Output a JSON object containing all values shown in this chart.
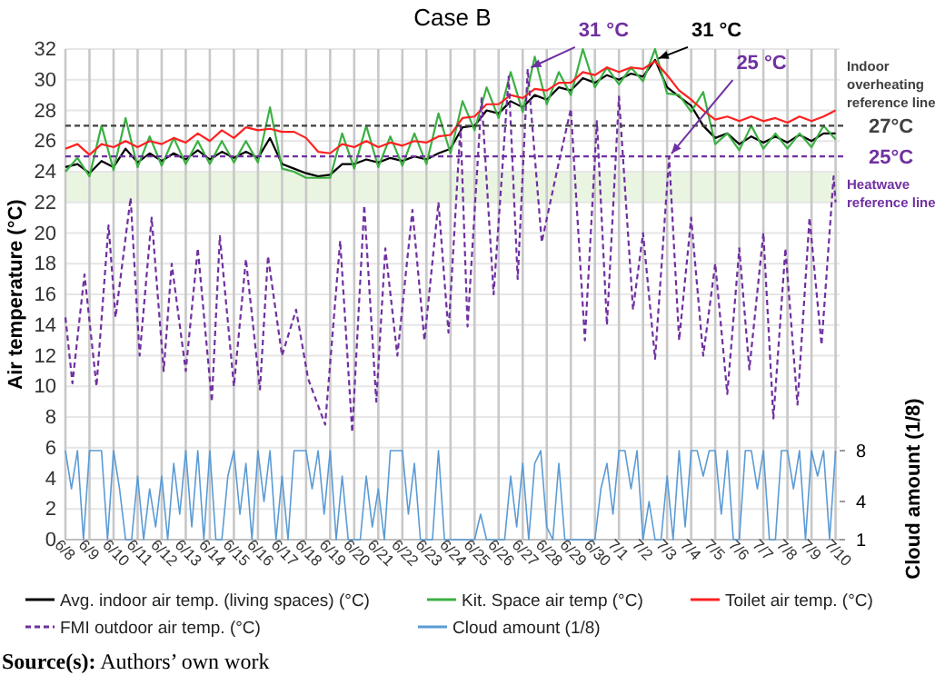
{
  "chart_data": {
    "type": "line",
    "title": "Case B",
    "ylabel": "Air temperature (°C)",
    "y2label": "Cloud amount (1/8)",
    "x": [
      "--06-08T00:00",
      "--06-08T12:00",
      "--06-09T00:00",
      "--06-09T12:00",
      "--06-10T00:00",
      "--06-10T12:00",
      "--06-11T00:00",
      "--06-11T12:00",
      "--06-12T00:00",
      "--06-12T12:00",
      "--06-13T00:00",
      "--06-13T12:00",
      "--06-14T00:00",
      "--06-14T12:00",
      "--06-15T00:00",
      "--06-15T12:00",
      "--06-16T00:00",
      "--06-16T12:00",
      "--06-17T00:00",
      "--06-17T12:00",
      "--06-18T00:00",
      "--06-18T12:00",
      "--06-19T00:00",
      "--06-19T12:00",
      "--06-20T00:00",
      "--06-20T12:00",
      "--06-21T00:00",
      "--06-21T12:00",
      "--06-22T00:00",
      "--06-22T12:00",
      "--06-23T00:00",
      "--06-23T12:00",
      "--06-24T00:00",
      "--06-24T12:00",
      "--06-25T00:00",
      "--06-25T12:00",
      "--06-26T00:00",
      "--06-26T12:00",
      "--06-27T00:00",
      "--06-27T12:00",
      "--06-28T00:00",
      "--06-28T12:00",
      "--06-29T00:00",
      "--06-29T12:00",
      "--06-30T00:00",
      "--06-30T12:00",
      "--07-01T00:00",
      "--07-01T12:00",
      "--07-02T00:00",
      "--07-02T12:00",
      "--07-03T00:00",
      "--07-03T12:00",
      "--07-04T00:00",
      "--07-04T12:00",
      "--07-05T00:00",
      "--07-05T12:00",
      "--07-06T00:00",
      "--07-06T12:00",
      "--07-07T00:00",
      "--07-07T12:00",
      "--07-08T00:00",
      "--07-08T12:00",
      "--07-09T00:00",
      "--07-09T12:00",
      "--07-10T00:00"
    ],
    "series": [
      {
        "name": "Avg. indoor air temp. (living spaces) (°C)",
        "color": "#000000",
        "values": [
          24.3,
          24.5,
          23.9,
          24.7,
          24.3,
          25.5,
          24.6,
          25.2,
          24.7,
          25.2,
          24.8,
          25.4,
          24.8,
          25.3,
          24.9,
          25.3,
          24.9,
          26.2,
          24.5,
          24.2,
          23.9,
          23.7,
          23.8,
          24.5,
          24.5,
          24.8,
          24.6,
          24.9,
          24.7,
          25.0,
          24.8,
          25.2,
          25.5,
          26.9,
          27.0,
          28.0,
          27.8,
          28.6,
          28.2,
          29.0,
          28.7,
          29.5,
          29.3,
          30.1,
          29.8,
          30.3,
          30.0,
          30.4,
          30.2,
          31.3,
          29.5,
          28.9,
          28.3,
          27.0,
          26.2,
          26.5,
          25.8,
          26.3,
          25.9,
          26.3,
          25.9,
          26.4,
          26.0,
          26.5,
          26.5
        ]
      },
      {
        "name": "Kit. Space air temp (°C)",
        "color": "#3cb043",
        "values": [
          24.0,
          24.9,
          23.7,
          27.0,
          24.1,
          27.5,
          24.3,
          26.3,
          24.4,
          26.2,
          24.5,
          26.0,
          24.5,
          26.0,
          24.6,
          26.0,
          24.6,
          28.2,
          24.2,
          24.0,
          23.6,
          23.6,
          23.6,
          26.5,
          24.2,
          27.0,
          24.3,
          26.3,
          24.4,
          26.5,
          24.5,
          27.8,
          25.2,
          28.6,
          26.7,
          29.5,
          27.5,
          30.5,
          27.9,
          31.5,
          28.4,
          30.5,
          29.0,
          32.0,
          29.5,
          30.8,
          29.7,
          30.8,
          29.9,
          32.0,
          29.1,
          29.0,
          27.9,
          29.2,
          25.8,
          26.5,
          25.4,
          27.0,
          25.5,
          26.5,
          25.5,
          26.5,
          25.6,
          27.0,
          26.1
        ]
      },
      {
        "name": "Toilet air temp. (°C)",
        "color": "#ff2020",
        "values": [
          25.5,
          25.8,
          25.1,
          25.8,
          25.6,
          26.0,
          25.6,
          26.0,
          25.8,
          26.2,
          25.9,
          26.5,
          26.0,
          26.7,
          26.2,
          26.9,
          26.7,
          26.8,
          26.6,
          26.6,
          26.2,
          25.3,
          25.2,
          25.8,
          25.6,
          26.0,
          25.6,
          25.9,
          25.7,
          26.0,
          25.9,
          26.3,
          26.4,
          27.5,
          27.6,
          28.4,
          28.4,
          29.0,
          28.8,
          29.4,
          29.3,
          29.8,
          29.8,
          30.5,
          30.3,
          30.8,
          30.5,
          30.8,
          30.7,
          31.2,
          30.3,
          29.3,
          28.7,
          28.0,
          27.4,
          27.6,
          27.3,
          27.6,
          27.3,
          27.5,
          27.2,
          27.6,
          27.3,
          27.6,
          28.0
        ]
      },
      {
        "name": "FMI outdoor air temp. (°C)",
        "color": "#7030a0",
        "line_style": "dashed",
        "x": [
          "--06-08T00:00",
          "--06-08T07:00",
          "--06-08T19:00",
          "--06-09T07:00",
          "--06-09T19:00",
          "--06-10T02:00",
          "--06-10T17:00",
          "--06-11T02:00",
          "--06-11T14:00",
          "--06-12T02:00",
          "--06-12T10:00",
          "--06-13T00:00",
          "--06-13T12:00",
          "--06-14T02:00",
          "--06-14T10:00",
          "--06-15T00:00",
          "--06-15T12:00",
          "--06-16T02:00",
          "--06-16T10:00",
          "--06-17T00:00",
          "--06-17T14:00",
          "--06-18T02:00",
          "--06-18T19:00",
          "--06-19T10:00",
          "--06-19T22:00",
          "--06-20T10:00",
          "--06-20T22:00",
          "--06-21T07:00",
          "--06-21T19:00",
          "--06-22T10:00",
          "--06-22T22:00",
          "--06-23T12:00",
          "--06-23T22:00",
          "--06-24T10:00",
          "--06-24T17:00",
          "--06-25T07:00",
          "--06-25T19:00",
          "--06-26T10:00",
          "--06-26T19:00",
          "--06-27T05:00",
          "--06-27T19:00",
          "--06-28T10:00",
          "--06-29T00:00",
          "--06-29T14:00",
          "--06-30T02:00",
          "--06-30T12:00",
          "--07-01T00:00",
          "--07-01T14:00",
          "--07-02T00:00",
          "--07-02T12:00",
          "--07-03T02:00",
          "--07-03T12:00",
          "--07-04T00:00",
          "--07-04T12:00",
          "--07-05T00:00",
          "--07-05T12:00",
          "--07-06T00:00",
          "--07-06T10:00",
          "--07-07T00:00",
          "--07-07T10:00",
          "--07-07T22:00",
          "--07-08T10:00",
          "--07-08T22:00",
          "--07-09T10:00",
          "--07-09T22:00",
          "--07-10T00:00"
        ],
        "values": [
          14.5,
          10.2,
          17.3,
          10,
          20.5,
          14.5,
          22.3,
          12,
          21,
          11,
          18,
          11,
          19,
          9,
          19.8,
          10,
          18.3,
          9.8,
          18.5,
          12,
          15,
          10.5,
          7.5,
          19.5,
          7,
          21.8,
          9,
          19,
          12,
          21.5,
          13,
          22,
          13.5,
          27,
          13.9,
          28.8,
          16,
          30.2,
          17,
          30.7,
          19.4,
          24,
          28.1,
          13,
          27.3,
          14,
          28.9,
          15,
          20,
          11.8,
          25,
          13,
          21,
          12,
          18,
          9.5,
          19,
          11.1,
          20,
          7.9,
          19,
          8.8,
          21,
          12.7,
          23.7,
          22
        ]
      },
      {
        "name": "Cloud amount (1/8)",
        "color": "#5b9bd5",
        "axis": "y2",
        "x": [
          "--06-08T00:00",
          "--06-08T06:00",
          "--06-08T12:00",
          "--06-08T18:00",
          "--06-09T00:00",
          "--06-09T06:00",
          "--06-09T12:00",
          "--06-09T18:00",
          "--06-10T00:00",
          "--06-10T06:00",
          "--06-10T12:00",
          "--06-10T18:00",
          "--06-11T00:00",
          "--06-11T06:00",
          "--06-11T12:00",
          "--06-11T18:00",
          "--06-12T00:00",
          "--06-12T06:00",
          "--06-12T12:00",
          "--06-12T18:00",
          "--06-13T00:00",
          "--06-13T06:00",
          "--06-13T12:00",
          "--06-13T18:00",
          "--06-14T00:00",
          "--06-14T06:00",
          "--06-14T12:00",
          "--06-14T18:00",
          "--06-15T00:00",
          "--06-15T06:00",
          "--06-15T12:00",
          "--06-15T18:00",
          "--06-16T00:00",
          "--06-16T06:00",
          "--06-16T12:00",
          "--06-16T18:00",
          "--06-17T00:00",
          "--06-17T06:00",
          "--06-17T12:00",
          "--06-17T18:00",
          "--06-18T00:00",
          "--06-18T06:00",
          "--06-18T12:00",
          "--06-18T18:00",
          "--06-19T00:00",
          "--06-19T06:00",
          "--06-19T12:00",
          "--06-19T18:00",
          "--06-20T00:00",
          "--06-20T06:00",
          "--06-20T12:00",
          "--06-20T18:00",
          "--06-21T00:00",
          "--06-21T06:00",
          "--06-21T12:00",
          "--06-21T18:00",
          "--06-22T00:00",
          "--06-22T06:00",
          "--06-22T12:00",
          "--06-22T18:00",
          "--06-23T00:00",
          "--06-23T06:00",
          "--06-23T12:00",
          "--06-23T18:00",
          "--06-24T00:00",
          "--06-24T06:00",
          "--06-24T12:00",
          "--06-24T18:00",
          "--06-25T00:00",
          "--06-25T06:00",
          "--06-25T12:00",
          "--06-25T18:00",
          "--06-26T00:00",
          "--06-26T06:00",
          "--06-26T12:00",
          "--06-26T18:00",
          "--06-27T00:00",
          "--06-27T06:00",
          "--06-27T12:00",
          "--06-27T18:00",
          "--06-28T00:00",
          "--06-28T06:00",
          "--06-28T12:00",
          "--06-28T18:00",
          "--06-29T00:00",
          "--06-29T06:00",
          "--06-29T12:00",
          "--06-29T18:00",
          "--06-30T00:00",
          "--06-30T06:00",
          "--06-30T12:00",
          "--06-30T18:00",
          "--07-01T00:00",
          "--07-01T06:00",
          "--07-01T12:00",
          "--07-01T18:00",
          "--07-02T00:00",
          "--07-02T06:00",
          "--07-02T12:00",
          "--07-02T18:00",
          "--07-03T00:00",
          "--07-03T06:00",
          "--07-03T12:00",
          "--07-03T18:00",
          "--07-04T00:00",
          "--07-04T06:00",
          "--07-04T12:00",
          "--07-04T18:00",
          "--07-05T00:00",
          "--07-05T06:00",
          "--07-05T12:00",
          "--07-05T18:00",
          "--07-06T00:00",
          "--07-06T06:00",
          "--07-06T12:00",
          "--07-06T18:00",
          "--07-07T00:00",
          "--07-07T06:00",
          "--07-07T12:00",
          "--07-07T18:00",
          "--07-08T00:00",
          "--07-08T06:00",
          "--07-08T12:00",
          "--07-08T18:00",
          "--07-09T00:00",
          "--07-09T06:00",
          "--07-09T12:00",
          "--07-09T18:00",
          "--07-10T00:00"
        ],
        "values": [
          8,
          5,
          8,
          1,
          8,
          8,
          8,
          1,
          8,
          5,
          1,
          1,
          6,
          1,
          5,
          2,
          6,
          1,
          7,
          3,
          8,
          2,
          8,
          1,
          8,
          1,
          1,
          6,
          8,
          3,
          7,
          1,
          8,
          4,
          8,
          1,
          6,
          1,
          8,
          8,
          8,
          5,
          8,
          3,
          8,
          1,
          6,
          1,
          1,
          1,
          6,
          2,
          5,
          1,
          8,
          8,
          8,
          3,
          7,
          1,
          1,
          1,
          8,
          1,
          1,
          1,
          1,
          1,
          1,
          3,
          1,
          1,
          1,
          1,
          6,
          2,
          7,
          1,
          7,
          8,
          2,
          1,
          7,
          1,
          1,
          1,
          1,
          1,
          1,
          5,
          7,
          3,
          8,
          8,
          5,
          8,
          1,
          4,
          1,
          1,
          6,
          1,
          8,
          2,
          8,
          8,
          6,
          8,
          8,
          3,
          8,
          1,
          1,
          8,
          8,
          5,
          8,
          1,
          1,
          8,
          8,
          5,
          8,
          1,
          8,
          6,
          8,
          1,
          8
        ]
      }
    ],
    "xlim": [
      "--06-08T00:00",
      "--07-10T04:00"
    ],
    "xticks": [
      {
        "value": "--06-08",
        "label": "6/8"
      },
      {
        "value": "--06-09",
        "label": "6/9"
      },
      {
        "value": "--06-10",
        "label": "6/10"
      },
      {
        "value": "--06-11",
        "label": "6/11"
      },
      {
        "value": "--06-12",
        "label": "6/12"
      },
      {
        "value": "--06-13",
        "label": "6/13"
      },
      {
        "value": "--06-14",
        "label": "6/14"
      },
      {
        "value": "--06-15",
        "label": "6/15"
      },
      {
        "value": "--06-16",
        "label": "6/16"
      },
      {
        "value": "--06-17",
        "label": "6/17"
      },
      {
        "value": "--06-18",
        "label": "6/18"
      },
      {
        "value": "--06-19",
        "label": "6/19"
      },
      {
        "value": "--06-20",
        "label": "6/20"
      },
      {
        "value": "--06-21",
        "label": "6/21"
      },
      {
        "value": "--06-22",
        "label": "6/22"
      },
      {
        "value": "--06-23",
        "label": "6/23"
      },
      {
        "value": "--06-24",
        "label": "6/24"
      },
      {
        "value": "--06-25",
        "label": "6/25"
      },
      {
        "value": "--06-26",
        "label": "6/26"
      },
      {
        "value": "--06-27",
        "label": "6/27"
      },
      {
        "value": "--06-28",
        "label": "6/28"
      },
      {
        "value": "--06-29",
        "label": "6/29"
      },
      {
        "value": "--06-30",
        "label": "6/30"
      },
      {
        "value": "--07-01",
        "label": "7/1"
      },
      {
        "value": "--07-02",
        "label": "7/2"
      },
      {
        "value": "--07-03",
        "label": "7/3"
      },
      {
        "value": "--07-04",
        "label": "7/4"
      },
      {
        "value": "--07-05",
        "label": "7/5"
      },
      {
        "value": "--07-06",
        "label": "7/6"
      },
      {
        "value": "--07-07",
        "label": "7/7"
      },
      {
        "value": "--07-08",
        "label": "7/8"
      },
      {
        "value": "--07-09",
        "label": "7/9"
      },
      {
        "value": "--07-10",
        "label": "7/10"
      }
    ],
    "ylim": [
      0,
      32
    ],
    "yticks": [
      0,
      2,
      4,
      6,
      8,
      10,
      12,
      14,
      16,
      18,
      20,
      22,
      24,
      26,
      28,
      30,
      32
    ],
    "y2lim": [
      1,
      39.6
    ],
    "y2ticks": [
      1,
      4,
      8
    ],
    "grid": true,
    "legend": "bottom",
    "ref_lines": [
      {
        "axis": "y",
        "value": 27,
        "label": "27°C",
        "color": "#404040",
        "line_style": "dashed"
      },
      {
        "axis": "y",
        "value": 25,
        "label": "25°C",
        "color": "#7030a0",
        "line_style": "dashed"
      }
    ],
    "bands": [
      {
        "axis": "y",
        "from": 22,
        "to": 24,
        "color": "#eaf5e1"
      }
    ],
    "annotations": [
      {
        "text": "31 °C",
        "x": "--06-27T05:00",
        "y": 30.7
      },
      {
        "text": "31 °C",
        "x": "--07-02T12:00",
        "y": 31.3
      },
      {
        "text": "25 °C",
        "x": "--07-03T02:00",
        "y": 25
      },
      "Indoor overheating reference line",
      "Heatwave reference line",
      "Source(s): Authors’ own work"
    ]
  }
}
